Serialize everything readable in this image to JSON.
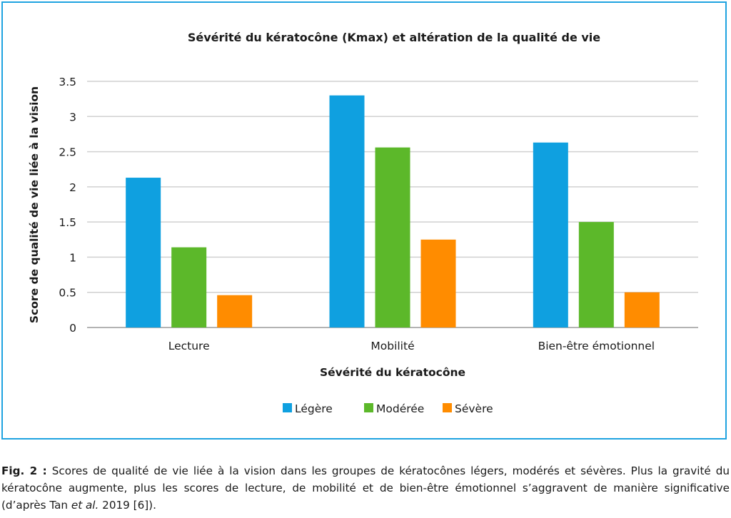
{
  "chart_data": {
    "type": "bar",
    "title": "Sévérité du kératocône (Kmax) et altération de la qualité de vie",
    "xlabel": "Sévérité du kératocône",
    "ylabel": "Score de qualité de vie liée à la vision",
    "categories": [
      "Lecture",
      "Mobilité",
      "Bien-être émotionnel"
    ],
    "series": [
      {
        "name": "Légère",
        "color": "#0fa0e0",
        "values": [
          2.13,
          3.3,
          2.63
        ]
      },
      {
        "name": "Modérée",
        "color": "#5cb82a",
        "values": [
          1.14,
          2.56,
          1.5
        ]
      },
      {
        "name": "Sévère",
        "color": "#ff8c00",
        "values": [
          0.46,
          1.25,
          0.5
        ]
      }
    ],
    "ylim": [
      0,
      3.5
    ],
    "yticks": [
      "0",
      "0.5",
      "1",
      "1.5",
      "2",
      "2.5",
      "3",
      "3.5"
    ],
    "grid": true,
    "legend": "bottom"
  },
  "caption": {
    "label": "Fig. 2 :",
    "text_1": " Scores de qualité de vie liée à la vision dans les groupes de kératocônes légers, modérés et sévères. Plus la gravité du kératocône augmente, plus les scores de lecture, de mobilité et de bien-être émotionnel s’aggravent de manière significative (d’après Tan ",
    "italic": "et al.",
    "text_2": " 2019 [6])."
  }
}
